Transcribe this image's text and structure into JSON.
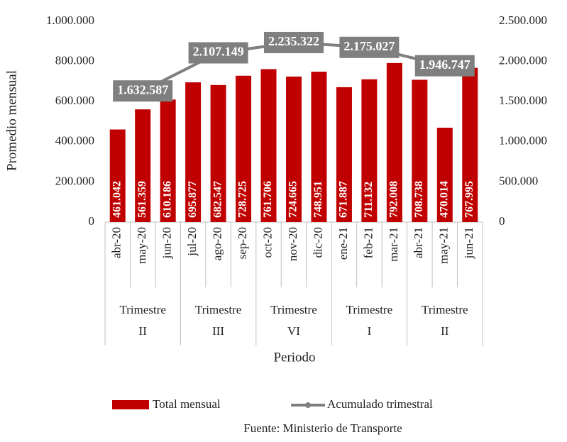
{
  "chart_data": {
    "type": "bar_line",
    "y_label": "Promedio mensual",
    "x_label": "Periodo",
    "source": "Fuente: Ministerio de Transporte",
    "category_groups": [
      {
        "name": [
          "Trimestre",
          "II"
        ],
        "categories": [
          "abr-20",
          "may-20",
          "jun-20"
        ]
      },
      {
        "name": [
          "Trimestre",
          "III"
        ],
        "categories": [
          "jul-20",
          "ago-20",
          "sep-20"
        ]
      },
      {
        "name": [
          "Trimestre",
          "VI"
        ],
        "categories": [
          "oct-20",
          "nov-20",
          "dic-20"
        ]
      },
      {
        "name": [
          "Trimestre",
          "I"
        ],
        "categories": [
          "ene-21",
          "feb-21",
          "mar-21"
        ]
      },
      {
        "name": [
          "Trimestre",
          "II"
        ],
        "categories": [
          "abr-21",
          "may-21",
          "jun-21"
        ]
      }
    ],
    "series": [
      {
        "name": "Total mensual",
        "type": "bar",
        "color": "#c00000",
        "values": [
          461042,
          561359,
          610186,
          695877,
          682547,
          728725,
          761706,
          724665,
          748951,
          671887,
          711132,
          792008,
          708738,
          470014,
          767995
        ],
        "value_labels": [
          "461.042",
          "561.359",
          "610.186",
          "695.877",
          "682.547",
          "728.725",
          "761.706",
          "724.665",
          "748.951",
          "671.887",
          "711.132",
          "792.008",
          "708.738",
          "470.014",
          "767.995"
        ]
      },
      {
        "name": "Acumulado trimestral",
        "type": "line",
        "axis": "y2",
        "color": "#7f7f7f",
        "values": [
          null,
          1632587,
          null,
          null,
          2107149,
          null,
          null,
          2235322,
          null,
          null,
          2175027,
          null,
          null,
          1946747,
          null
        ],
        "value_labels": [
          null,
          "1.632.587",
          null,
          null,
          "2.107.149",
          null,
          null,
          "2.235.322",
          null,
          null,
          "2.175.027",
          null,
          null,
          "1.946.747",
          null
        ]
      }
    ],
    "ylim": [
      0,
      1000000
    ],
    "yticks": [
      {
        "value": 0,
        "label": "0"
      },
      {
        "value": 200000,
        "label": "200.000"
      },
      {
        "value": 400000,
        "label": "400.000"
      },
      {
        "value": 600000,
        "label": "600.000"
      },
      {
        "value": 800000,
        "label": "800.000"
      },
      {
        "value": 1000000,
        "label": "1.000.000"
      }
    ],
    "y2lim": [
      0,
      2500000
    ],
    "y2ticks": [
      {
        "value": 0,
        "label": "0"
      },
      {
        "value": 500000,
        "label": "500.000"
      },
      {
        "value": 1000000,
        "label": "1.000.000"
      },
      {
        "value": 1500000,
        "label": "1.500.000"
      },
      {
        "value": 2000000,
        "label": "2.000.000"
      },
      {
        "value": 2500000,
        "label": "2.500.000"
      }
    ],
    "grid": false,
    "legend": "bottom"
  }
}
